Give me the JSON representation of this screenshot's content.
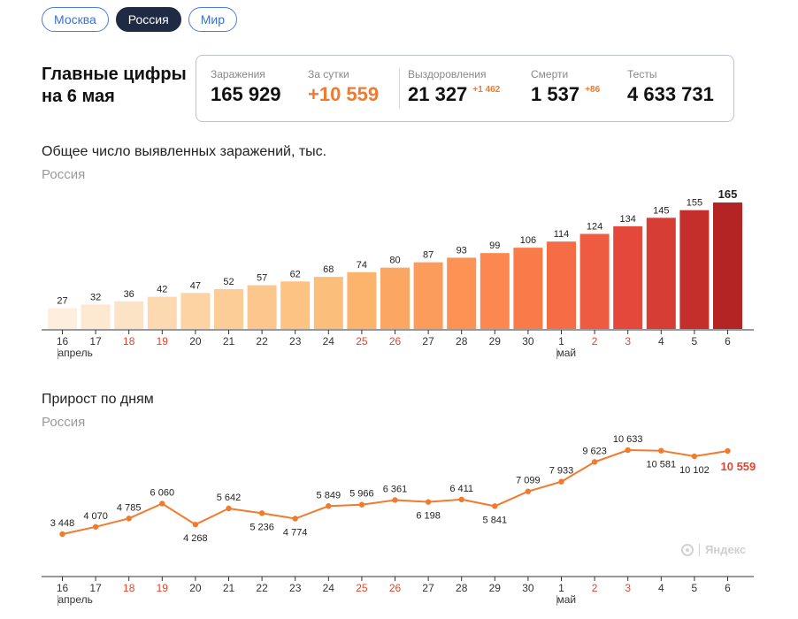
{
  "tabs": [
    {
      "label": "Москва",
      "active": false
    },
    {
      "label": "Россия",
      "active": true
    },
    {
      "label": "Мир",
      "active": false
    }
  ],
  "headline": {
    "line1": "Главные цифры",
    "line2": "на 6 мая"
  },
  "stats": {
    "infections": {
      "label": "Заражения",
      "value": "165 929"
    },
    "per_day": {
      "label": "За сутки",
      "value": "+10 559"
    },
    "recovered": {
      "label": "Выздоровления",
      "value": "21 327",
      "delta": "+1 462"
    },
    "deaths": {
      "label": "Смерти",
      "value": "1 537",
      "delta": "+86"
    },
    "tests": {
      "label": "Тесты",
      "value": "4 633 731"
    }
  },
  "watermark": "Яндекс",
  "chart_data": [
    {
      "type": "bar",
      "title": "Общее число выявленных заражений, тыс.",
      "subtitle": "Россия",
      "categories": [
        "16",
        "17",
        "18",
        "19",
        "20",
        "21",
        "22",
        "23",
        "24",
        "25",
        "26",
        "27",
        "28",
        "29",
        "30",
        "1",
        "2",
        "3",
        "4",
        "5",
        "6"
      ],
      "weekend_categories": [
        "18",
        "19",
        "25",
        "26",
        "2",
        "3"
      ],
      "month_labels": [
        {
          "at": "16",
          "label": "апрель"
        },
        {
          "at": "1",
          "label": "май"
        }
      ],
      "values": [
        27,
        32,
        36,
        42,
        47,
        52,
        57,
        62,
        68,
        74,
        80,
        87,
        93,
        99,
        106,
        114,
        124,
        134,
        145,
        155,
        165
      ],
      "labels": [
        "27",
        "32",
        "36",
        "42",
        "47",
        "52",
        "57",
        "62",
        "68",
        "74",
        "80",
        "87",
        "93",
        "99",
        "106",
        "114",
        "124",
        "134",
        "145",
        "155",
        "165"
      ],
      "ylim": [
        0,
        165
      ],
      "colors": [
        "#fdeedd",
        "#fde9d2",
        "#fde3c6",
        "#fdd9b1",
        "#fdd3a4",
        "#fccd97",
        "#fcc78c",
        "#fcc383",
        "#fcbf7b",
        "#fcb46d",
        "#fca663",
        "#fc9c5c",
        "#fc9355",
        "#fc8750",
        "#f97b4a",
        "#f56c45",
        "#ef5b40",
        "#e3483a",
        "#d63d35",
        "#c52f2b",
        "#b52424"
      ]
    },
    {
      "type": "line",
      "title": "Прирост по дням",
      "subtitle": "Россия",
      "categories": [
        "16",
        "17",
        "18",
        "19",
        "20",
        "21",
        "22",
        "23",
        "24",
        "25",
        "26",
        "27",
        "28",
        "29",
        "30",
        "1",
        "2",
        "3",
        "4",
        "5",
        "6"
      ],
      "weekend_categories": [
        "18",
        "19",
        "25",
        "26",
        "2",
        "3"
      ],
      "month_labels": [
        {
          "at": "16",
          "label": "апрель"
        },
        {
          "at": "1",
          "label": "май"
        }
      ],
      "values": [
        3448,
        4070,
        4785,
        6060,
        4268,
        5642,
        5236,
        4774,
        5849,
        5966,
        6361,
        6198,
        6411,
        5841,
        7099,
        7933,
        9623,
        10633,
        10581,
        10102,
        10559
      ],
      "labels": [
        "3 448",
        "4 070",
        "4 785",
        "6 060",
        "4 268",
        "5 642",
        "5 236",
        "4 774",
        "5 849",
        "5 966",
        "6 361",
        "6 198",
        "6 411",
        "5 841",
        "7 099",
        "7 933",
        "9 623",
        "10 633",
        "10 581",
        "10 102",
        "10 559"
      ],
      "label_above": [
        true,
        true,
        true,
        true,
        false,
        true,
        false,
        false,
        true,
        true,
        true,
        false,
        true,
        false,
        true,
        true,
        true,
        true,
        false,
        false,
        false
      ],
      "line_color": "#f27a2e",
      "highlight_color": "#e0442e"
    }
  ]
}
